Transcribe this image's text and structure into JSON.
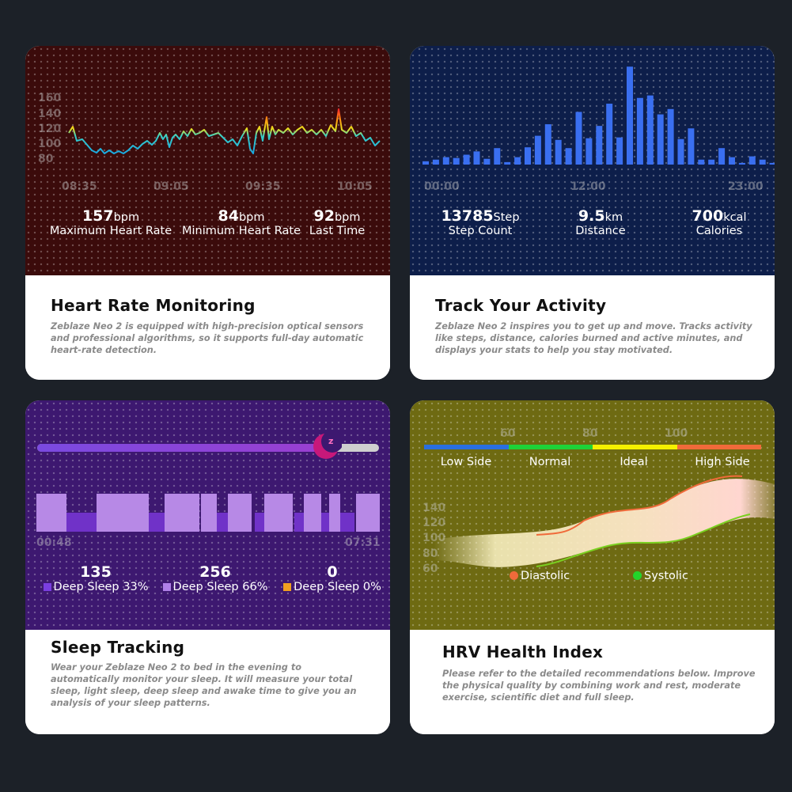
{
  "heart": {
    "y_ticks": [
      "160",
      "140",
      "120",
      "100",
      "80"
    ],
    "x_ticks": [
      "08:35",
      "09:05",
      "09:35",
      "10:05"
    ],
    "stats": [
      {
        "value": "157",
        "unit": "bpm",
        "label": "Maximum Heart Rate"
      },
      {
        "value": "84",
        "unit": "bpm",
        "label": "Minimum Heart Rate"
      },
      {
        "value": "92",
        "unit": "bpm",
        "label": "Last Time"
      }
    ],
    "title": "Heart Rate Monitoring",
    "description": "Zeblaze Neo 2 is equipped with high-precision optical sensors and professional algorithms, so it supports full-day automatic heart-rate detection.",
    "colors": {
      "bg": "#3b0b0b",
      "line_low": "#22b8d6",
      "line_high": "#ff3020"
    }
  },
  "activity": {
    "x_ticks": [
      "00:00",
      "12:00",
      "23:00"
    ],
    "stats": [
      {
        "value": "13785",
        "unit": "Step",
        "label": "Step Count"
      },
      {
        "value": "9.5",
        "unit": "km",
        "label": "Distance"
      },
      {
        "value": "700",
        "unit": "kcal",
        "label": "Calories"
      }
    ],
    "title": "Track Your Activity",
    "description": "Zeblaze Neo 2 inspires you to get up and move. Tracks activity like steps, distance, calories burned and active minutes, and displays your stats to help you stay motivated.",
    "colors": {
      "bg": "#0d1e4a",
      "bar": "#3a6ff0"
    }
  },
  "sleep": {
    "x_ticks": [
      "00:48",
      "07:31"
    ],
    "slider_progress": 0.85,
    "stats": [
      {
        "value": "135",
        "label": "Deep Sleep 33%",
        "color": "#7a3ee0"
      },
      {
        "value": "256",
        "label": "Deep Sleep 66%",
        "color": "#b080e8"
      },
      {
        "value": "0",
        "label": "Deep Sleep 0%",
        "color": "#f0a020"
      }
    ],
    "title": "Sleep Tracking",
    "description": "Wear your Zeblaze Neo 2 to bed in the evening to automatically monitor your sleep. It will measure your total sleep, light sleep, deep sleep and awake time to give you an analysis of your sleep patterns.",
    "colors": {
      "bg": "#3d1870",
      "light": "#b789e6",
      "deep": "#7032c8"
    }
  },
  "hrv": {
    "scale_ticks": [
      "60",
      "80",
      "100"
    ],
    "zones": [
      {
        "label": "Low Side",
        "color": "#2a6fe0"
      },
      {
        "label": "Normal",
        "color": "#1ed238"
      },
      {
        "label": "Ideal",
        "color": "#f4f000"
      },
      {
        "label": "High Side",
        "color": "#f06a3a"
      }
    ],
    "y_ticks": [
      "140",
      "120",
      "100",
      "80",
      "60"
    ],
    "legend": [
      {
        "label": "Diastolic",
        "color": "#f06a3a"
      },
      {
        "label": "Systolic",
        "color": "#22d42a"
      }
    ],
    "title": "HRV Health Index",
    "description": "Please refer to the detailed recommendations below. Improve the physical quality by combining work and rest, moderate exercise, scientific diet and full sleep.",
    "colors": {
      "bg": "#6e6a12"
    }
  }
}
